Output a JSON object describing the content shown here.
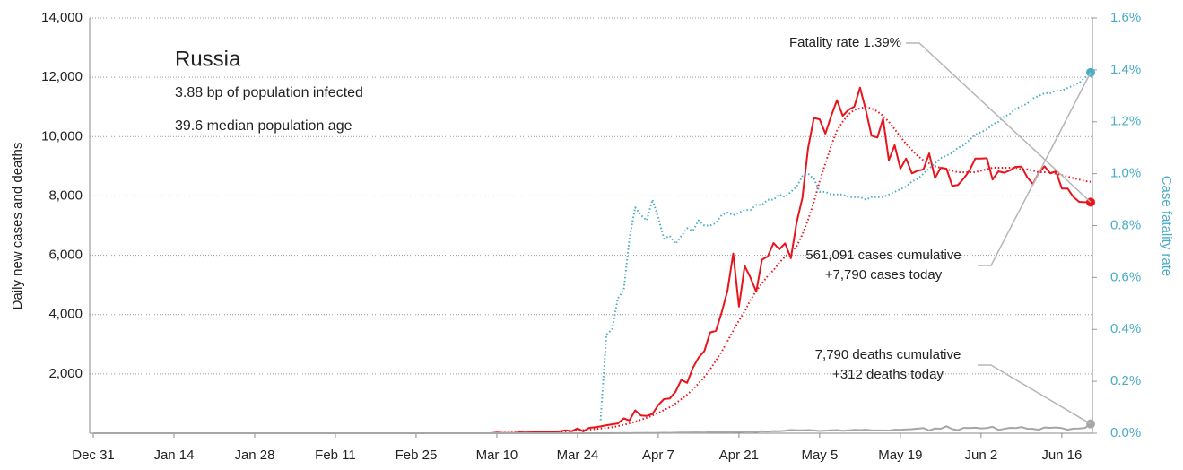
{
  "chart_data": {
    "type": "line",
    "title": "Russia",
    "subtitle": [
      "3.88 bp of population infected",
      "39.6 median population age"
    ],
    "ylabel": "Daily new cases and deaths",
    "y2label": "Case fatality rate",
    "annotations": [
      {
        "lines": [
          "Fatality rate 1.39%"
        ]
      },
      {
        "lines": [
          "561,091 cases cumulative",
          "+7,790 cases today"
        ]
      },
      {
        "lines": [
          "7,790 deaths cumulative",
          "+312 deaths today"
        ]
      }
    ],
    "ylim": [
      0,
      14000
    ],
    "yticks": [
      {
        "value": 2000,
        "label": "2,000"
      },
      {
        "value": 4000,
        "label": "4,000"
      },
      {
        "value": 6000,
        "label": "6,000"
      },
      {
        "value": 8000,
        "label": "8,000"
      },
      {
        "value": 10000,
        "label": "10,000"
      },
      {
        "value": 12000,
        "label": "12,000"
      },
      {
        "value": 14000,
        "label": "14,000"
      }
    ],
    "y2lim": [
      0,
      1.6
    ],
    "y2ticks": [
      {
        "value": 0,
        "label": "0.0%"
      },
      {
        "value": 0.2,
        "label": "0.2%"
      },
      {
        "value": 0.4,
        "label": "0.4%"
      },
      {
        "value": 0.6,
        "label": "0.6%"
      },
      {
        "value": 0.8,
        "label": "0.8%"
      },
      {
        "value": 1.0,
        "label": "1.0%"
      },
      {
        "value": 1.2,
        "label": "1.2%"
      },
      {
        "value": 1.4,
        "label": "1.4%"
      },
      {
        "value": 1.6,
        "label": "1.6%"
      }
    ],
    "grid": true,
    "categories": [
      "Dec 31",
      null,
      null,
      null,
      null,
      null,
      null,
      null,
      null,
      null,
      null,
      null,
      null,
      null,
      "Jan 14",
      null,
      null,
      null,
      null,
      null,
      null,
      null,
      null,
      null,
      null,
      null,
      null,
      null,
      "Jan 28",
      null,
      null,
      null,
      null,
      null,
      null,
      null,
      null,
      null,
      null,
      null,
      null,
      null,
      "Feb 11",
      null,
      null,
      null,
      null,
      null,
      null,
      null,
      null,
      null,
      null,
      null,
      null,
      null,
      "Feb 25",
      null,
      null,
      null,
      null,
      null,
      null,
      null,
      null,
      null,
      null,
      null,
      null,
      null,
      "Mar 10",
      null,
      null,
      null,
      null,
      null,
      null,
      null,
      null,
      null,
      null,
      null,
      null,
      null,
      "Mar 24",
      null,
      null,
      null,
      null,
      null,
      null,
      null,
      null,
      null,
      null,
      null,
      null,
      null,
      "Apr 7",
      null,
      null,
      null,
      null,
      null,
      null,
      null,
      null,
      null,
      null,
      null,
      null,
      null,
      "Apr 21",
      null,
      null,
      null,
      null,
      null,
      null,
      null,
      null,
      null,
      null,
      null,
      null,
      null,
      "May 5",
      null,
      null,
      null,
      null,
      null,
      null,
      null,
      null,
      null,
      null,
      null,
      null,
      null,
      "May 19",
      null,
      null,
      null,
      null,
      null,
      null,
      null,
      null,
      null,
      null,
      null,
      null,
      null,
      "Jun 2",
      null,
      null,
      null,
      null,
      null,
      null,
      null,
      null,
      null,
      null,
      null,
      null,
      null,
      "Jun 16",
      null,
      null,
      null,
      null,
      null
    ],
    "series": [
      {
        "color": "#e8141c",
        "style": "solid",
        "end_marker": true,
        "values": [
          0,
          0,
          0,
          0,
          0,
          0,
          0,
          0,
          0,
          0,
          0,
          0,
          0,
          0,
          0,
          0,
          0,
          0,
          0,
          0,
          0,
          0,
          0,
          0,
          0,
          0,
          0,
          0,
          0,
          0,
          0,
          0,
          0,
          0,
          0,
          0,
          0,
          0,
          0,
          0,
          0,
          0,
          0,
          0,
          0,
          0,
          0,
          0,
          0,
          0,
          0,
          0,
          0,
          0,
          0,
          0,
          0,
          0,
          0,
          0,
          0,
          0,
          0,
          0,
          0,
          0,
          0,
          0,
          0,
          0,
          20,
          10,
          5,
          8,
          30,
          20,
          30,
          60,
          50,
          50,
          50,
          70,
          100,
          70,
          160,
          60,
          180,
          200,
          230,
          270,
          300,
          330,
          500,
          430,
          770,
          600,
          580,
          650,
          950,
          1150,
          1170,
          1400,
          1800,
          1700,
          2200,
          2550,
          2770,
          3400,
          3450,
          4070,
          4800,
          6060,
          4270,
          5640,
          5240,
          4770,
          5850,
          5960,
          6410,
          6200,
          6400,
          5900,
          7100,
          7930,
          9620,
          10630,
          10580,
          10100,
          10700,
          11230,
          10700,
          10900,
          11010,
          11650,
          10900,
          10030,
          9970,
          10600,
          9200,
          9710,
          8920,
          9260,
          8760,
          8850,
          8890,
          9430,
          8600,
          8950,
          8920,
          8340,
          8370,
          8590,
          8860,
          9260,
          9260,
          9270,
          8550,
          8830,
          8780,
          8860,
          8980,
          8990,
          8630,
          8400,
          8780,
          9000,
          8760,
          8830,
          8250,
          8250,
          7970,
          7800,
          7790,
          7790
        ]
      },
      {
        "color": "#e8141c",
        "style": "dotted",
        "end_marker": false,
        "values": [
          null,
          null,
          null,
          null,
          null,
          null,
          null,
          null,
          null,
          null,
          null,
          null,
          null,
          null,
          null,
          null,
          null,
          null,
          null,
          null,
          null,
          null,
          null,
          null,
          null,
          null,
          null,
          null,
          null,
          null,
          null,
          null,
          null,
          null,
          null,
          null,
          null,
          null,
          null,
          null,
          null,
          null,
          null,
          null,
          null,
          null,
          null,
          null,
          null,
          null,
          null,
          null,
          null,
          null,
          null,
          null,
          null,
          null,
          null,
          null,
          null,
          null,
          null,
          null,
          null,
          null,
          null,
          null,
          null,
          null,
          15,
          15,
          15,
          20,
          20,
          25,
          30,
          35,
          40,
          45,
          50,
          55,
          65,
          75,
          90,
          105,
          120,
          140,
          160,
          180,
          200,
          240,
          280,
          330,
          390,
          450,
          520,
          600,
          680,
          780,
          880,
          1000,
          1150,
          1300,
          1480,
          1680,
          1900,
          2150,
          2450,
          2750,
          3100,
          3450,
          3800,
          4100,
          4500,
          4800,
          5050,
          5300,
          5500,
          5750,
          5950,
          6100,
          6300,
          6700,
          7200,
          7800,
          8500,
          9100,
          9700,
          10200,
          10500,
          10750,
          10900,
          10950,
          11000,
          10950,
          10850,
          10700,
          10500,
          10250,
          10000,
          9750,
          9550,
          9350,
          9200,
          9100,
          9000,
          8950,
          8900,
          8850,
          8800,
          8800,
          8800,
          8800,
          8850,
          8900,
          8950,
          8950,
          8950,
          8950,
          8950,
          8900,
          8900,
          8850,
          8800,
          8800,
          8800,
          8750,
          8700,
          8650,
          8600,
          8550,
          8500,
          8480
        ]
      },
      {
        "color": "#4bacc6",
        "style": "dotted",
        "axis": "y2",
        "end_marker": true,
        "values": [
          null,
          null,
          null,
          null,
          null,
          null,
          null,
          null,
          null,
          null,
          null,
          null,
          null,
          null,
          null,
          null,
          null,
          null,
          null,
          null,
          null,
          null,
          null,
          null,
          null,
          null,
          null,
          null,
          null,
          null,
          null,
          null,
          null,
          null,
          null,
          null,
          null,
          null,
          null,
          null,
          null,
          null,
          null,
          null,
          null,
          null,
          null,
          null,
          null,
          null,
          null,
          null,
          null,
          null,
          null,
          null,
          null,
          null,
          null,
          null,
          null,
          null,
          null,
          null,
          null,
          null,
          null,
          null,
          null,
          null,
          null,
          null,
          null,
          null,
          null,
          null,
          null,
          null,
          null,
          null,
          null,
          null,
          null,
          null,
          null,
          null,
          null,
          null,
          0.05,
          0.38,
          0.4,
          0.52,
          0.55,
          0.75,
          0.87,
          0.84,
          0.82,
          0.9,
          0.83,
          0.75,
          0.76,
          0.73,
          0.76,
          0.79,
          0.78,
          0.82,
          0.8,
          0.8,
          0.81,
          0.84,
          0.85,
          0.84,
          0.85,
          0.86,
          0.86,
          0.88,
          0.88,
          0.9,
          0.9,
          0.92,
          0.91,
          0.93,
          0.95,
          0.99,
          1.0,
          0.98,
          0.93,
          0.93,
          0.92,
          0.92,
          0.92,
          0.91,
          0.91,
          0.91,
          0.9,
          0.91,
          0.91,
          0.91,
          0.92,
          0.93,
          0.94,
          0.95,
          0.97,
          0.98,
          1.0,
          1.02,
          1.04,
          1.06,
          1.07,
          1.08,
          1.1,
          1.11,
          1.13,
          1.15,
          1.16,
          1.17,
          1.19,
          1.2,
          1.22,
          1.23,
          1.25,
          1.26,
          1.27,
          1.29,
          1.3,
          1.31,
          1.31,
          1.32,
          1.32,
          1.33,
          1.34,
          1.35,
          1.37,
          1.39
        ]
      },
      {
        "color": "#a6a6a6",
        "style": "solid",
        "end_marker": true,
        "values": [
          0,
          0,
          0,
          0,
          0,
          0,
          0,
          0,
          0,
          0,
          0,
          0,
          0,
          0,
          0,
          0,
          0,
          0,
          0,
          0,
          0,
          0,
          0,
          0,
          0,
          0,
          0,
          0,
          0,
          0,
          0,
          0,
          0,
          0,
          0,
          0,
          0,
          0,
          0,
          0,
          0,
          0,
          0,
          0,
          0,
          0,
          0,
          0,
          0,
          0,
          0,
          0,
          0,
          0,
          0,
          0,
          0,
          0,
          0,
          0,
          0,
          0,
          0,
          0,
          0,
          0,
          0,
          0,
          0,
          0,
          0,
          0,
          0,
          0,
          0,
          0,
          0,
          0,
          0,
          0,
          0,
          0,
          0,
          0,
          0,
          0,
          0,
          0,
          0,
          0,
          2,
          3,
          5,
          4,
          7,
          9,
          11,
          8,
          13,
          15,
          13,
          18,
          20,
          22,
          27,
          28,
          22,
          37,
          34,
          33,
          47,
          48,
          42,
          51,
          57,
          44,
          66,
          58,
          72,
          66,
          82,
          108,
          96,
          101,
          105,
          95,
          76,
          88,
          98,
          107,
          86,
          94,
          115,
          107,
          119,
          96,
          93,
          94,
          91,
          119,
          115,
          127,
          135,
          153,
          174,
          92,
          161,
          150,
          232,
          138,
          102,
          182,
          171,
          184,
          162,
          174,
          216,
          112,
          144,
          181,
          171,
          208,
          150,
          147,
          114,
          193,
          181,
          194,
          171,
          119,
          154,
          157,
          177,
          312
        ]
      }
    ]
  }
}
